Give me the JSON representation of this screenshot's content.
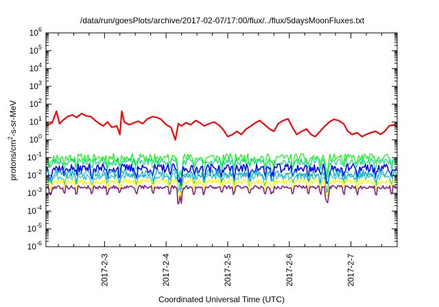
{
  "chart_data": {
    "type": "line",
    "title": "/data/run/goesPlots/archive/2017-02-07/17:00/flux/../flux/5daysMoonFluxes.txt",
    "xlabel": "Coordinated Universal Time (UTC)",
    "ylabel": {
      "prefix": "protons/cm",
      "sup": "2",
      "suffix": "-s-sr-MeV"
    },
    "yscale": "log",
    "ylim_exp": [
      -6,
      6
    ],
    "y_tick_exponents": [
      -6,
      -5,
      -4,
      -3,
      -2,
      -1,
      0,
      1,
      2,
      3,
      4,
      5,
      6
    ],
    "y_tick_base": "10",
    "xlim": [
      2.05,
      7.75
    ],
    "x_ticks": [
      {
        "value": 3,
        "label": "2017-2-3"
      },
      {
        "value": 4,
        "label": "2017-2-4"
      },
      {
        "value": 5,
        "label": "2017-2-5"
      },
      {
        "value": 6,
        "label": "2017-2-6"
      },
      {
        "value": 7,
        "label": "2017-2-7"
      }
    ],
    "grid": false,
    "series": [
      {
        "color": "#ff0000",
        "width": 2.2,
        "x": [
          2.05,
          2.15,
          2.22,
          2.27,
          2.32,
          2.4,
          2.48,
          2.55,
          2.63,
          2.7,
          2.78,
          2.85,
          2.92,
          2.98,
          3.05,
          3.12,
          3.2,
          3.25,
          3.28,
          3.32,
          3.4,
          3.48,
          3.55,
          3.62,
          3.7,
          3.78,
          3.85,
          3.92,
          4.0,
          4.08,
          4.15,
          4.2,
          4.25,
          4.32,
          4.4,
          4.48,
          4.55,
          4.62,
          4.7,
          4.78,
          4.85,
          4.92,
          5.0,
          5.08,
          5.15,
          5.22,
          5.3,
          5.38,
          5.45,
          5.52,
          5.6,
          5.68,
          5.75,
          5.82,
          5.9,
          5.98,
          6.05,
          6.12,
          6.2,
          6.28,
          6.35,
          6.42,
          6.5,
          6.58,
          6.65,
          6.72,
          6.8,
          6.88,
          6.95,
          7.02,
          7.1,
          7.18,
          7.25,
          7.32,
          7.4,
          7.48,
          7.55,
          7.62,
          7.7,
          7.75
        ],
        "y": [
          6,
          9,
          40,
          8,
          12,
          20,
          25,
          18,
          30,
          22,
          20,
          12,
          8,
          6,
          10,
          5,
          6,
          2,
          40,
          10,
          7,
          9,
          11,
          8,
          15,
          20,
          18,
          14,
          7,
          5,
          1,
          8,
          6,
          9,
          7,
          12,
          9,
          6,
          8,
          10,
          7,
          4,
          1.5,
          2,
          3,
          2,
          4,
          6,
          9,
          12,
          7,
          4,
          3,
          8,
          12,
          15,
          5,
          2,
          3,
          4,
          2,
          1.5,
          3,
          6,
          10,
          14,
          12,
          8,
          3,
          2,
          2.5,
          1.5,
          2,
          2.5,
          3,
          2,
          3,
          6,
          7,
          5
        ]
      },
      {
        "color": "#00ff00",
        "width": 1.2,
        "base": 0.1,
        "spread": 0.45,
        "seed": 11
      },
      {
        "color": "#00dd77",
        "width": 1.2,
        "base": 0.06,
        "spread": 0.4,
        "seed": 23
      },
      {
        "color": "#0000ff",
        "width": 1.6,
        "base": 0.025,
        "spread": 0.5,
        "seed": 37
      },
      {
        "color": "#00aacc",
        "width": 1.2,
        "base": 0.013,
        "spread": 0.45,
        "seed": 41
      },
      {
        "color": "#00bbbb",
        "width": 1.0,
        "base": 0.009,
        "spread": 0.4,
        "seed": 53
      },
      {
        "color": "#ffff00",
        "width": 1.6,
        "base": 0.0045,
        "spread": 0.25,
        "seed": 67
      },
      {
        "color": "#8b1a8b",
        "width": 1.6,
        "base": 0.0022,
        "spread": 0.2,
        "seed": 79
      }
    ]
  }
}
